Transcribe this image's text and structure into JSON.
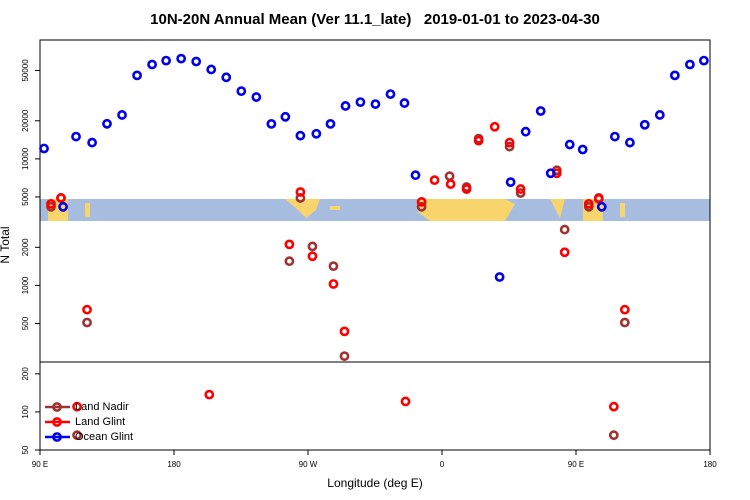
{
  "chart_data": {
    "type": "scatter",
    "title": "10N-20N Annual Mean (Ver 11.1_late)   2019-01-01 to 2023-04-30",
    "x_label": "Longitude (deg E)",
    "y_label": "N Total",
    "xlim": [
      90,
      540
    ],
    "xticks": [
      {
        "value": 90,
        "label": "90 E"
      },
      180,
      {
        "value": 270,
        "label": "90 W"
      },
      {
        "value": 360,
        "label": "0"
      },
      {
        "value": 450,
        "label": "90 E"
      },
      {
        "value": 540,
        "label": "180"
      }
    ],
    "ylim": [
      50,
      87000
    ],
    "log_y": true,
    "yticks": [
      50,
      100,
      200,
      500,
      1000,
      2000,
      5000,
      10000,
      20000,
      50000
    ],
    "legend": "bottom-left",
    "series": [
      {
        "name": "Land Nadir",
        "color": "#a03232",
        "x": [
          97.4,
          104.1,
          114.9,
          121.6,
          257.5,
          264.9,
          273,
          287.1,
          294.5,
          346.3,
          365.1,
          376.5,
          384.6,
          405.4,
          412.8,
          437.1,
          442.4,
          458.6,
          465.3,
          475.4,
          482.8
        ],
        "values": [
          4180,
          4910,
          65.5,
          509,
          1553,
          4910,
          2033,
          1420,
          276,
          4180,
          7300,
          5990,
          14450,
          12510,
          5370,
          8130,
          2762,
          4180,
          4910,
          65.5,
          509
        ]
      },
      {
        "name": "Land Glint",
        "color": "#ff0000",
        "x": [
          97.4,
          104.1,
          114.9,
          121.6,
          203.7,
          257.5,
          264.9,
          273,
          287.1,
          294.5,
          335.5,
          346.3,
          355,
          365.8,
          376.5,
          384.6,
          395.4,
          405.4,
          412.8,
          437.1,
          442.4,
          458.6,
          465.3,
          475.4,
          482.8
        ],
        "values": [
          4410,
          4910,
          110,
          643,
          137,
          2110,
          5470,
          1700,
          1026,
          433,
          121,
          4570,
          6790,
          6320,
          5770,
          13940,
          17940,
          13450,
          5770,
          7700,
          1827,
          4410,
          4820,
          110,
          643
        ]
      },
      {
        "name": "Ocean Glint",
        "color": "#0000ee",
        "x": [
          92.7,
          105.5,
          114.2,
          125,
          135,
          145.1,
          155.2,
          165.3,
          174.7,
          184.8,
          194.9,
          205,
          215.1,
          225.2,
          235.3,
          245.4,
          254.8,
          264.9,
          275.6,
          285.1,
          295.2,
          305.2,
          315.3,
          325.4,
          334.8,
          342.2,
          398.7,
          406.1,
          416.2,
          426.3,
          433,
          445.8,
          454.5,
          467.3,
          476.1,
          486.2,
          496.2,
          506.3,
          516.4,
          526.5,
          535.9
        ],
        "values": [
          12080,
          4180,
          15000,
          13450,
          18930,
          22240,
          45700,
          55700,
          59800,
          62000,
          58800,
          50900,
          44100,
          34300,
          30800,
          18900,
          21500,
          15250,
          15800,
          18900,
          26200,
          28100,
          27100,
          32500,
          27600,
          7430,
          1165,
          6550,
          16400,
          23900,
          7700,
          12980,
          11860,
          4180,
          15000,
          13450,
          18600,
          22240,
          45700,
          55700,
          59800
        ]
      }
    ]
  }
}
